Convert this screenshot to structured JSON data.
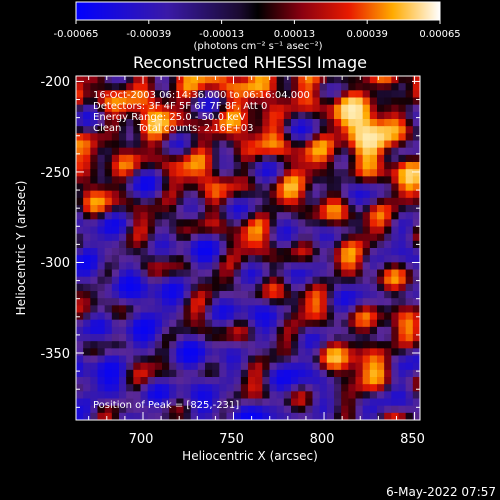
{
  "colorbar": {
    "tick_labels": [
      "-0.00065",
      "-0.00039",
      "-0.00013",
      "0.00013",
      "0.00039",
      "0.00065"
    ],
    "units_label": "(photons cm⁻² s⁻¹ asec⁻²)",
    "range": [
      -0.00065,
      0.00065
    ]
  },
  "chart_data": {
    "type": "heatmap",
    "title": "Reconstructed RHESSI Image",
    "xlabel": "Heliocentric X (arcsec)",
    "ylabel": "Heliocentric Y (arcsec)",
    "xlim": [
      663,
      853
    ],
    "ylim": [
      -387,
      -197
    ],
    "x_ticks": [
      700,
      750,
      800,
      850
    ],
    "y_ticks": [
      -200,
      -250,
      -300,
      -350
    ],
    "annotations": [
      "16-Oct-2003 06:14:36.000 to 06:16:04.000",
      "Detectors: 3F 4F 5F 6F 7F 8F, Att 0",
      "Energy Range: 25.0 - 50.0 keV",
      "Clean     Total counts: 2.16E+03"
    ],
    "peak_label": "Position of Peak = [825,-231]",
    "peak_position": [
      825,
      -231
    ]
  },
  "footer": {
    "timestamp": "6-May-2022 07:57"
  },
  "colors": {
    "background": "#000000",
    "foreground": "#ffffff"
  }
}
